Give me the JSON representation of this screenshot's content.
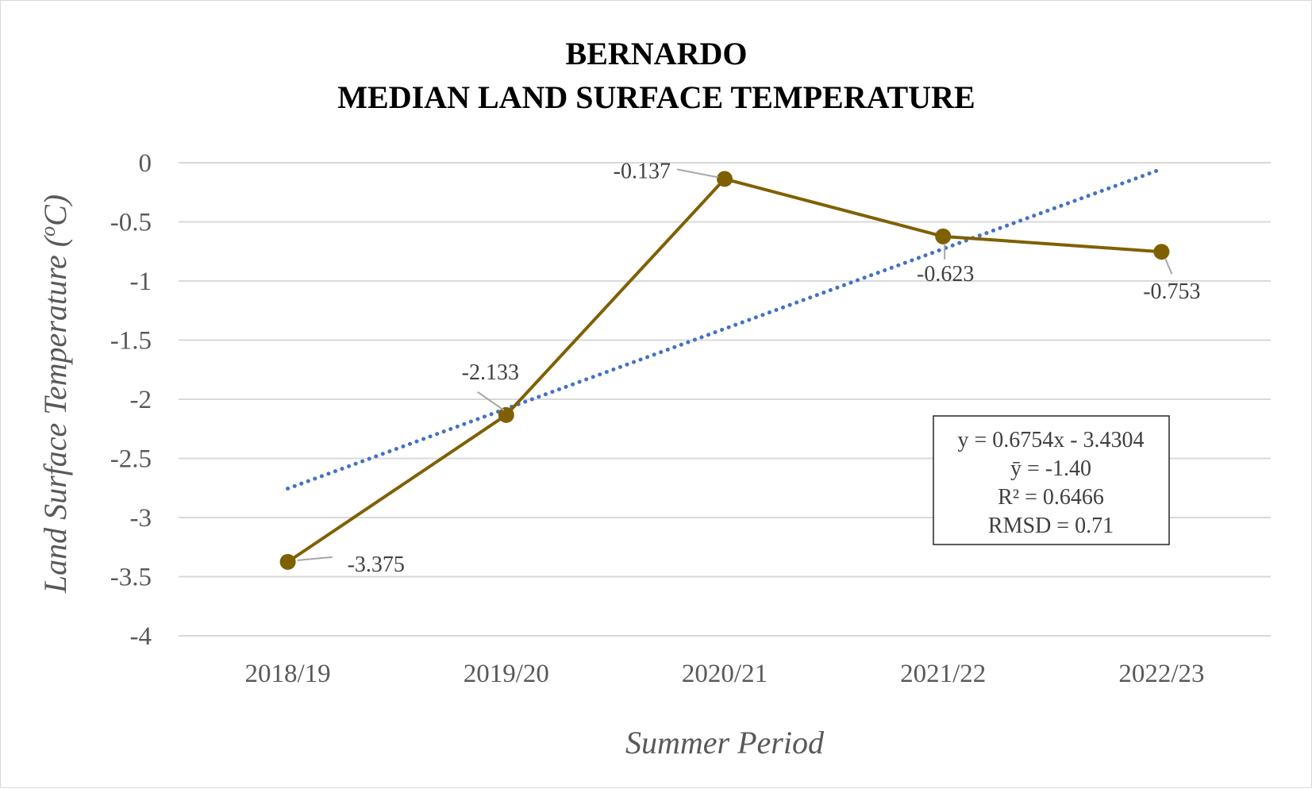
{
  "chart_data": {
    "type": "line",
    "title": [
      "BERNARDO",
      "MEDIAN LAND SURFACE TEMPERATURE"
    ],
    "xlabel": "Summer Period",
    "ylabel": "Land Surface Temperature (",
    "ylabel_sup": "o",
    "ylabel_end": "C)",
    "categories": [
      "2018/19",
      "2019/20",
      "2020/21",
      "2021/22",
      "2022/23"
    ],
    "series": [
      {
        "values": [
          -3.375,
          -2.133,
          -0.137,
          -0.623,
          -0.753
        ],
        "labels": [
          "-3.375",
          "-2.133",
          "-0.137",
          "-0.623",
          "-0.753"
        ],
        "color": "#7f6000"
      }
    ],
    "trendline": {
      "type": "linear",
      "slope": 0.6754,
      "intercept": -3.4304,
      "color": "#4472c4",
      "style": "dotted"
    },
    "ylim": [
      -4,
      0
    ],
    "yticks": [
      0,
      -0.5,
      -1,
      -1.5,
      -2,
      -2.5,
      -3,
      -3.5,
      -4
    ],
    "ytick_labels": [
      "0",
      "-0.5",
      "-1",
      "-1.5",
      "-2",
      "-2.5",
      "-3",
      "-3.5",
      "-4"
    ],
    "grid": true,
    "gridline_color": "#d9d9d9",
    "legend": "none",
    "stats_box": [
      "y = 0.6754x - 3.4304",
      "ȳ = -1.40",
      "R² = 0.6466",
      "RMSD = 0.71"
    ]
  }
}
